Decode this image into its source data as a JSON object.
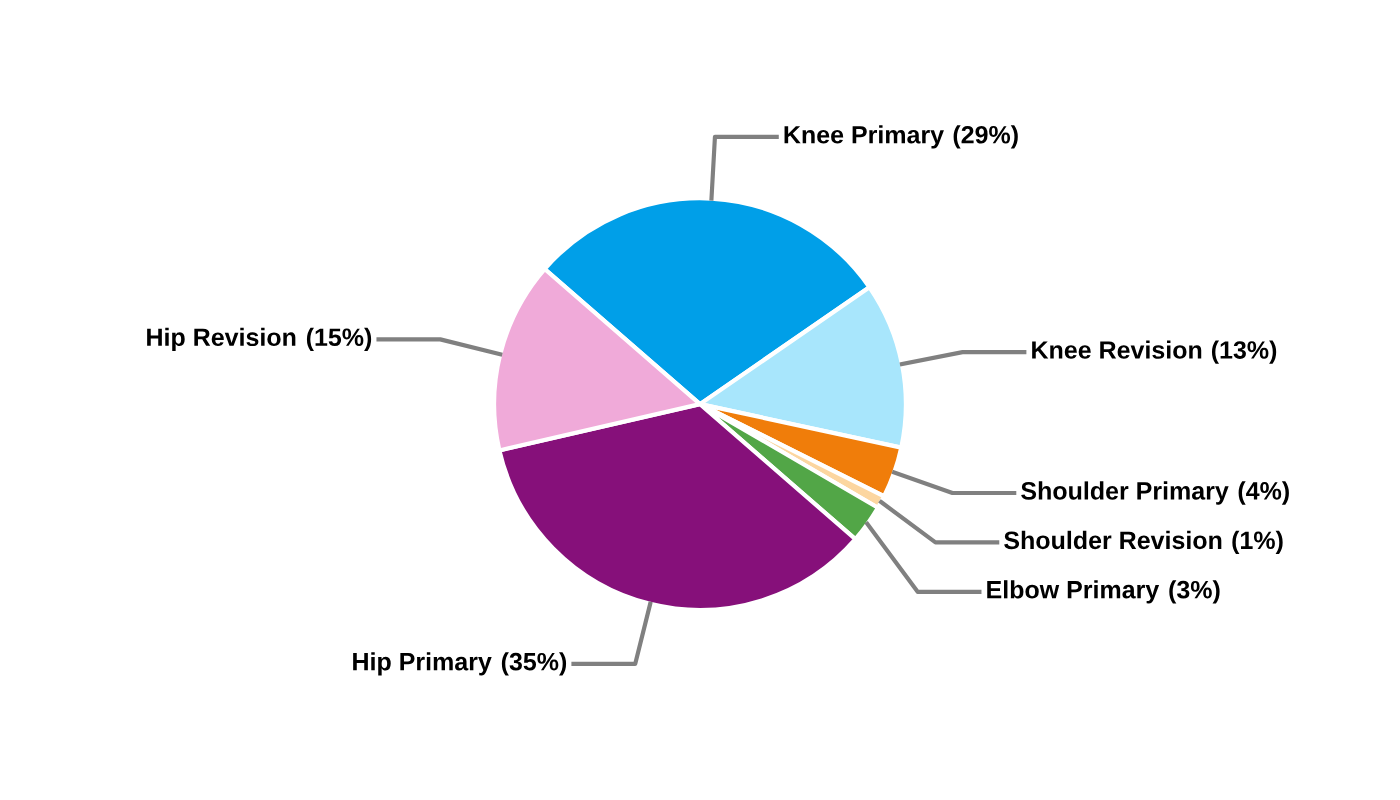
{
  "chart_data": {
    "type": "pie",
    "categories": [
      "Knee Primary",
      "Knee Revision",
      "Shoulder Primary",
      "Shoulder Revision",
      "Elbow Primary",
      "Hip Primary",
      "Hip Revision"
    ],
    "values": [
      29,
      13,
      4,
      1,
      3,
      35,
      15
    ],
    "colors": [
      "#009fe8",
      "#a8e6fc",
      "#f07d0a",
      "#fcd6a0",
      "#52a647",
      "#86107a",
      "#f0aad9"
    ],
    "value_labels": [
      "(29%)",
      "(13%)",
      "(4%)",
      "(1%)",
      "(3%)",
      "(35%)",
      "(15%)"
    ],
    "legend": false
  }
}
